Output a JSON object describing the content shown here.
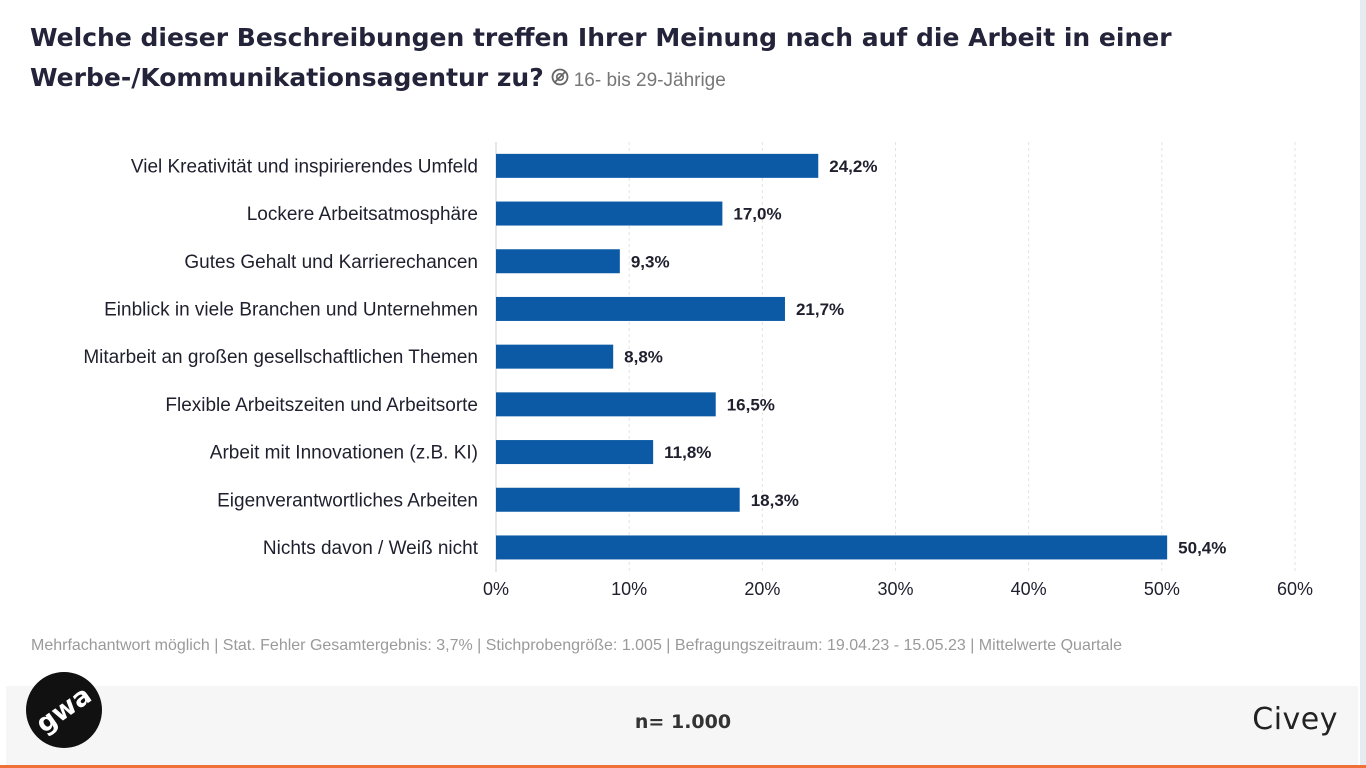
{
  "header": {
    "title": "Welche dieser Beschreibungen treffen Ihrer Meinung nach auf die Arbeit in einer Werbe-/Kommunikationsagentur zu?",
    "subtitle": "16- bis 29-Jährige",
    "icon": "segment-filter-icon"
  },
  "chart_data": {
    "type": "bar",
    "orientation": "horizontal",
    "categories": [
      "Viel Kreativität und inspirierendes Umfeld",
      "Lockere Arbeitsatmosphäre",
      "Gutes Gehalt und Karrierechancen",
      "Einblick in viele Branchen und Unternehmen",
      "Mitarbeit an großen gesellschaftlichen Themen",
      "Flexible Arbeitszeiten und Arbeitsorte",
      "Arbeit mit Innovationen (z.B. KI)",
      "Eigenverantwortliches Arbeiten",
      "Nichts davon / Weiß nicht"
    ],
    "values": [
      24.2,
      17.0,
      9.3,
      21.7,
      8.8,
      16.5,
      11.8,
      18.3,
      50.4
    ],
    "value_labels": [
      "24,2%",
      "17,0%",
      "9,3%",
      "21,7%",
      "8,8%",
      "16,5%",
      "11,8%",
      "18,3%",
      "50,4%"
    ],
    "x_ticks": [
      0,
      10,
      20,
      30,
      40,
      50,
      60
    ],
    "x_tick_labels": [
      "0%",
      "10%",
      "20%",
      "30%",
      "40%",
      "50%",
      "60%"
    ],
    "xlim": [
      0,
      60
    ],
    "grid": true,
    "bar_color": "#0c5aa6",
    "title": "Welche dieser Beschreibungen treffen Ihrer Meinung nach auf die Arbeit in einer Werbe-/Kommunikationsagentur zu?"
  },
  "footer": {
    "note": "Mehrfachantwort möglich | Stat. Fehler Gesamtergebnis: 3,7% | Stichprobengröße: 1.005 | Befragungszeitraum: 19.04.23 - 15.05.23 | Mittelwerte Quartale",
    "sample": "n= 1.000",
    "brand_left": "gwa",
    "brand_right": "Civey"
  },
  "colors": {
    "bar": "#0c5aa6",
    "grid": "#e3e3e3",
    "accent_edge": "#f0703a"
  }
}
